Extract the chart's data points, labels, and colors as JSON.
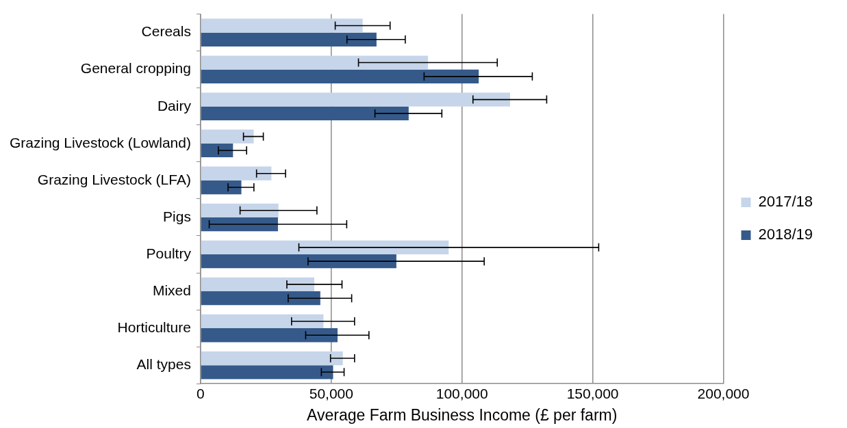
{
  "chart_data": {
    "type": "bar",
    "orientation": "horizontal",
    "xlabel": "Average Farm Business Income (£ per farm)",
    "categories": [
      "Cereals",
      "General cropping",
      "Dairy",
      "Grazing Livestock (Lowland)",
      "Grazing Livestock (LFA)",
      "Pigs",
      "Poultry",
      "Mixed",
      "Horticulture",
      "All types"
    ],
    "series": [
      {
        "name": "2017/18",
        "color": "#c6d5e9",
        "values": [
          62000,
          87000,
          118400,
          20300,
          27100,
          29800,
          94900,
          43500,
          47000,
          54400
        ],
        "errors": [
          [
            51500,
            72500
          ],
          [
            60400,
            113500
          ],
          [
            104200,
            132400
          ],
          [
            16400,
            24000
          ],
          [
            21400,
            32500
          ],
          [
            15100,
            44500
          ],
          [
            37600,
            152300
          ],
          [
            33000,
            54100
          ],
          [
            34800,
            58900
          ],
          [
            49700,
            58900
          ]
        ]
      },
      {
        "name": "2018/19",
        "color": "#355a8a",
        "values": [
          67300,
          106400,
          79600,
          12400,
          15600,
          29600,
          74900,
          45800,
          52400,
          50700
        ],
        "errors": [
          [
            56000,
            78300
          ],
          [
            85500,
            126900
          ],
          [
            66700,
            92300
          ],
          [
            6800,
            17600
          ],
          [
            10500,
            20400
          ],
          [
            3300,
            55900
          ],
          [
            41100,
            108500
          ],
          [
            33500,
            57800
          ],
          [
            40200,
            64400
          ],
          [
            46200,
            54900
          ]
        ]
      }
    ],
    "xlim": [
      0,
      200000
    ],
    "xticks": [
      {
        "value": 0,
        "label": "0"
      },
      {
        "value": 50000,
        "label": "50,000"
      },
      {
        "value": 100000,
        "label": "100,000"
      },
      {
        "value": 150000,
        "label": "150,000"
      },
      {
        "value": 200000,
        "label": "200,000"
      }
    ],
    "grid": "x",
    "legend": "right"
  }
}
